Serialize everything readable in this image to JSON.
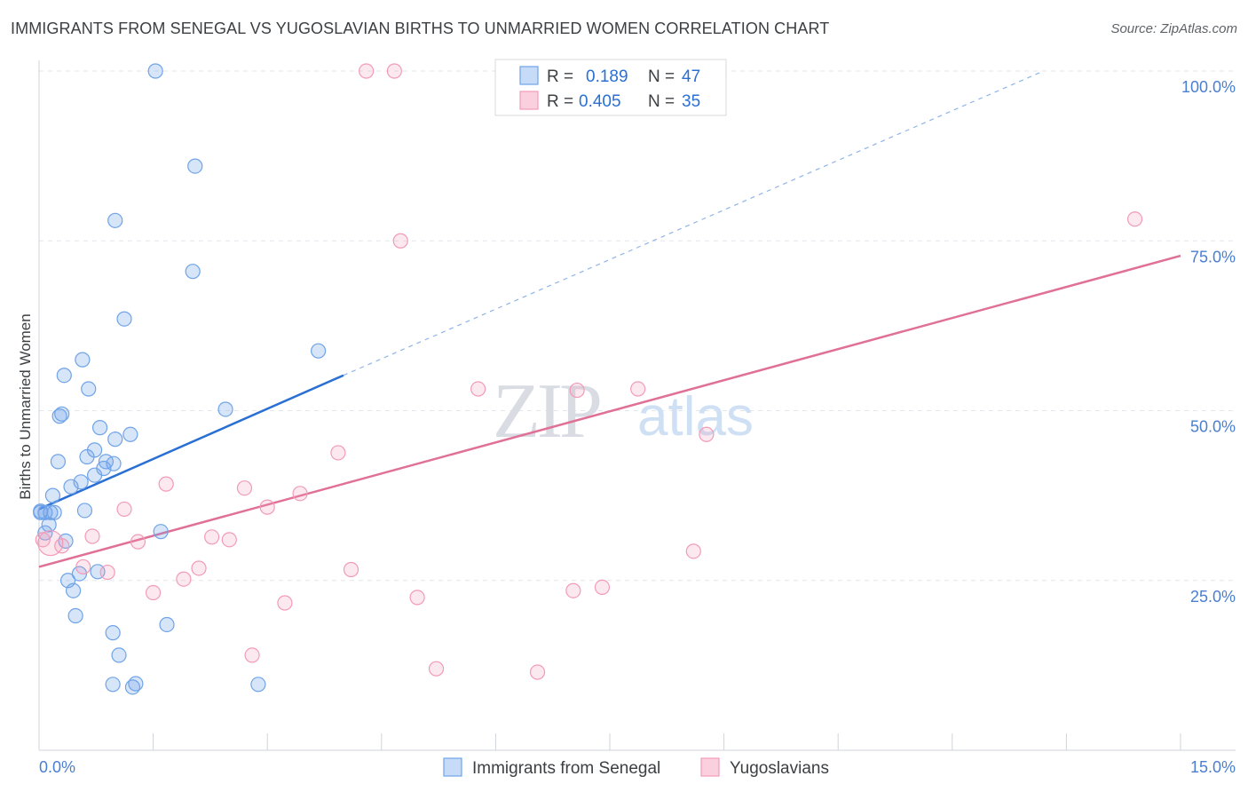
{
  "chart_data": {
    "type": "scatter",
    "title": "IMMIGRANTS FROM SENEGAL VS YUGOSLAVIAN BIRTHS TO UNMARRIED WOMEN CORRELATION CHART",
    "source": "Source: ZipAtlas.com",
    "xlabel": "",
    "ylabel": "Births to Unmarried Women",
    "xlim": [
      0,
      15
    ],
    "ylim": [
      0,
      100
    ],
    "x_tick_labels": [
      "0.0%",
      "15.0%"
    ],
    "y_ticks": [
      25,
      50,
      75,
      100
    ],
    "y_tick_labels": [
      "25.0%",
      "50.0%",
      "75.0%",
      "100.0%"
    ],
    "watermark": {
      "zip": "ZIP",
      "atlas": "atlas"
    },
    "colors": {
      "senegal": "#6fa3e8",
      "yugoslavian": "#f29ab8",
      "senegal_line": "#2a6fd3",
      "yugoslavian_line": "#e07096",
      "axis_text": "#4a7fd0"
    },
    "stats_legend": [
      {
        "r_label": "R =",
        "r": "0.189",
        "n_label": "N =",
        "n": "47"
      },
      {
        "r_label": "R =",
        "r": "0.405",
        "n_label": "N =",
        "n": "35"
      }
    ],
    "series": [
      {
        "name": "Immigrants from Senegal",
        "points": [
          [
            1.53,
            100
          ],
          [
            2.05,
            86
          ],
          [
            1.0,
            78
          ],
          [
            2.02,
            70.5
          ],
          [
            1.12,
            63.5
          ],
          [
            3.67,
            58.8
          ],
          [
            0.57,
            57.5
          ],
          [
            0.33,
            55.2
          ],
          [
            0.65,
            53.2
          ],
          [
            2.45,
            50.2
          ],
          [
            0.3,
            49.5
          ],
          [
            0.27,
            49.2
          ],
          [
            0.8,
            47.5
          ],
          [
            1.2,
            46.5
          ],
          [
            1.0,
            45.8
          ],
          [
            0.73,
            44.2
          ],
          [
            0.63,
            43.2
          ],
          [
            0.25,
            42.5
          ],
          [
            0.88,
            42.5
          ],
          [
            0.98,
            42.2
          ],
          [
            0.85,
            41.5
          ],
          [
            0.73,
            40.5
          ],
          [
            0.55,
            39.5
          ],
          [
            0.42,
            38.8
          ],
          [
            0.18,
            37.5
          ],
          [
            0.6,
            35.3
          ],
          [
            0.08,
            35
          ],
          [
            0.15,
            35
          ],
          [
            0.2,
            35
          ],
          [
            0.02,
            35
          ],
          [
            0.13,
            33.2
          ],
          [
            0.08,
            32
          ],
          [
            1.6,
            32.2
          ],
          [
            0.35,
            30.8
          ],
          [
            0.77,
            26.3
          ],
          [
            0.53,
            26
          ],
          [
            0.38,
            25
          ],
          [
            0.45,
            23.5
          ],
          [
            0.48,
            19.8
          ],
          [
            1.68,
            18.5
          ],
          [
            0.97,
            17.3
          ],
          [
            1.05,
            14
          ],
          [
            1.27,
            9.8
          ],
          [
            0.97,
            9.7
          ],
          [
            2.88,
            9.7
          ],
          [
            1.23,
            9.3
          ],
          [
            0.02,
            35.2
          ]
        ]
      },
      {
        "name": "Yugoslavians",
        "points": [
          [
            4.3,
            100
          ],
          [
            4.67,
            100
          ],
          [
            14.4,
            78.2
          ],
          [
            4.75,
            75
          ],
          [
            5.77,
            53.2
          ],
          [
            7.07,
            53.0
          ],
          [
            7.87,
            53.2
          ],
          [
            8.77,
            46.5
          ],
          [
            3.93,
            43.8
          ],
          [
            1.67,
            39.2
          ],
          [
            2.7,
            38.6
          ],
          [
            3.43,
            37.8
          ],
          [
            3.0,
            35.8
          ],
          [
            1.12,
            35.5
          ],
          [
            0.7,
            31.5
          ],
          [
            2.27,
            31.4
          ],
          [
            2.5,
            31.0
          ],
          [
            1.3,
            30.7
          ],
          [
            0.3,
            30.1
          ],
          [
            0.05,
            31.0
          ],
          [
            8.6,
            29.3
          ],
          [
            0.58,
            27.0
          ],
          [
            2.1,
            26.8
          ],
          [
            4.1,
            26.6
          ],
          [
            0.9,
            26.2
          ],
          [
            1.9,
            25.2
          ],
          [
            1.5,
            23.2
          ],
          [
            7.02,
            23.5
          ],
          [
            7.4,
            24.0
          ],
          [
            4.97,
            22.5
          ],
          [
            3.23,
            21.7
          ],
          [
            2.8,
            14.0
          ],
          [
            5.22,
            12.0
          ],
          [
            6.55,
            11.5
          ],
          [
            0.15,
            30.5
          ]
        ]
      }
    ],
    "trend_lines": [
      {
        "name": "Immigrants from Senegal",
        "x": [
          0,
          4.0
        ],
        "y": [
          35.5,
          55.2
        ],
        "dashed_extension_to_x": 13.2,
        "dashed_end_y": 100
      },
      {
        "name": "Yugoslavians",
        "x": [
          0,
          15
        ],
        "y": [
          27.0,
          72.8
        ]
      }
    ],
    "bottom_legend": [
      "Immigrants from Senegal",
      "Yugoslavians"
    ]
  }
}
